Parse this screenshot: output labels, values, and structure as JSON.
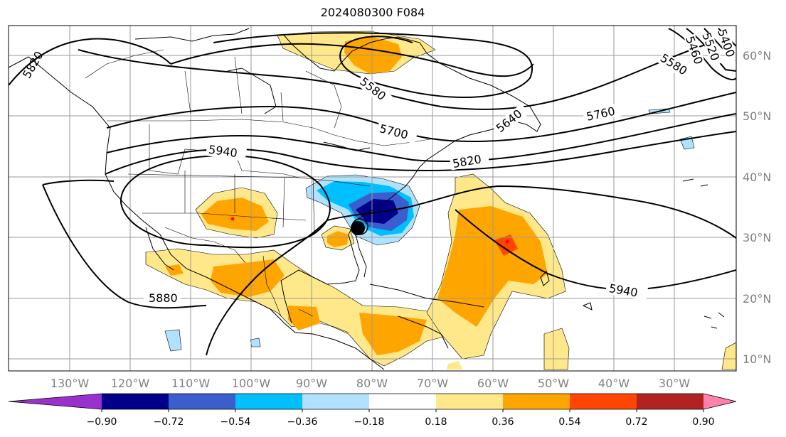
{
  "title": "2024080300 F084",
  "lon_labels": [
    "130°W",
    "120°W",
    "110°W",
    "100°W",
    "90°W",
    "80°W",
    "70°W",
    "60°W",
    "50°W",
    "40°W",
    "30°W"
  ],
  "lat_labels": [
    "60°N",
    "50°N",
    "40°N",
    "30°N",
    "20°N",
    "10°N"
  ],
  "colorbar": {
    "ticks": [
      "−0.90",
      "−0.72",
      "−0.54",
      "−0.36",
      "−0.18",
      "0.18",
      "0.36",
      "0.54",
      "0.72",
      "0.90"
    ],
    "colors": [
      "#9932cc",
      "#00008b",
      "#3a5fcd",
      "#00bfff",
      "#b0e2ff",
      "#ffffff",
      "#ffe88a",
      "#ffa500",
      "#ff4500",
      "#b22222",
      "#ff82ab"
    ]
  },
  "contour_labels": [
    "5880",
    "5940",
    "5940",
    "5820",
    "5760",
    "5700",
    "5580",
    "5640",
    "5580",
    "5460",
    "5400",
    "5520",
    "5820"
  ]
}
